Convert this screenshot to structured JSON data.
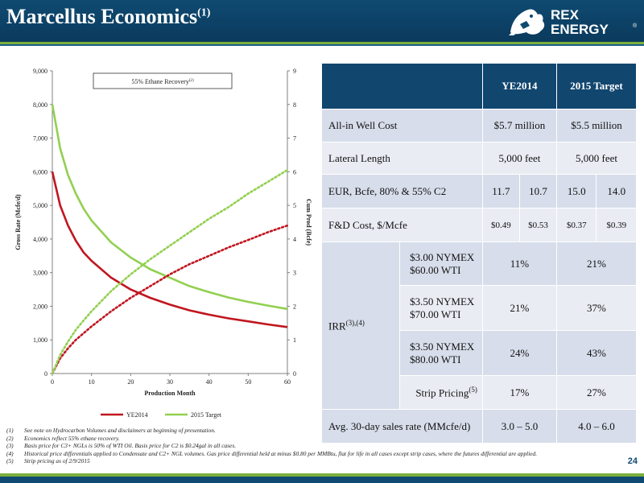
{
  "slide": {
    "title": "Marcellus Economics",
    "title_note": "(1)",
    "logo_text_1": "REX",
    "logo_text_2": "ENERGY",
    "logo_mark": "®",
    "page_number": "24"
  },
  "colors": {
    "header_blue": "#0f4a72",
    "accent_green": "#7bb03c",
    "ye2014_red": "#c0161f",
    "target_green": "#92d050"
  },
  "chart_data": {
    "type": "line",
    "annotation": "55% Ethane Recovery",
    "annotation_note": "(2)",
    "xlabel": "Production Month",
    "ylabel": "Gross Rate (Mcfe/d)",
    "y2label": "Cum Prod (Bcfe)",
    "xlim": [
      0,
      60
    ],
    "ylim": [
      0,
      9000
    ],
    "y2lim": [
      0,
      9
    ],
    "xticks": [
      0,
      10,
      20,
      30,
      40,
      50,
      60
    ],
    "yticks": [
      0,
      1000,
      2000,
      3000,
      4000,
      5000,
      6000,
      7000,
      8000,
      9000
    ],
    "ytick_labels": [
      "0",
      "1,000",
      "2,000",
      "3,000",
      "4,000",
      "5,000",
      "6,000",
      "7,000",
      "8,000",
      "9,000"
    ],
    "y2ticks": [
      0,
      1,
      2,
      3,
      4,
      5,
      6,
      7,
      8,
      9
    ],
    "x": [
      0,
      2,
      4,
      6,
      8,
      10,
      15,
      20,
      25,
      30,
      35,
      40,
      45,
      50,
      55,
      60
    ],
    "series": [
      {
        "name": "YE2014",
        "axis": "left",
        "style": "solid",
        "color": "#c0161f",
        "values": [
          6000,
          5000,
          4400,
          3950,
          3600,
          3350,
          2850,
          2500,
          2250,
          2050,
          1880,
          1750,
          1640,
          1550,
          1460,
          1380
        ]
      },
      {
        "name": "2015 Target",
        "axis": "left",
        "style": "solid",
        "color": "#92d050",
        "values": [
          8000,
          6700,
          5900,
          5350,
          4900,
          4550,
          3900,
          3450,
          3100,
          2850,
          2600,
          2420,
          2260,
          2130,
          2020,
          1920
        ]
      },
      {
        "name": "YE2014",
        "axis": "right",
        "style": "dotted",
        "color": "#c0161f",
        "values": [
          0,
          0.45,
          0.75,
          1.0,
          1.2,
          1.4,
          1.85,
          2.25,
          2.6,
          2.95,
          3.25,
          3.5,
          3.75,
          3.97,
          4.2,
          4.4
        ]
      },
      {
        "name": "2015 Target",
        "axis": "right",
        "style": "dotted",
        "color": "#92d050",
        "values": [
          0,
          0.55,
          0.95,
          1.3,
          1.58,
          1.85,
          2.45,
          2.95,
          3.4,
          3.8,
          4.2,
          4.6,
          4.95,
          5.35,
          5.7,
          6.05
        ]
      }
    ],
    "legend": [
      "YE2014",
      "2015 Target"
    ],
    "legend_position": "bottom",
    "grid": false
  },
  "table": {
    "headers": [
      "",
      "YE2014",
      "2015 Target"
    ],
    "well_cost": {
      "label": "All-in Well Cost",
      "ye2014": "$5.7 million",
      "target": "$5.5 million"
    },
    "lateral": {
      "label": "Lateral Length",
      "ye2014": "5,000 feet",
      "target": "5,000 feet"
    },
    "eur": {
      "label": "EUR, Bcfe, 80% & 55% C2",
      "v1": "11.7",
      "v2": "10.7",
      "v3": "15.0",
      "v4": "14.0"
    },
    "fd": {
      "label": "F&D Cost, $/Mcfe",
      "v1": "$0.49",
      "v2": "$0.53",
      "v3": "$0.37",
      "v4": "$0.39"
    },
    "irr_label": "IRR",
    "irr_note": "(3),(4)",
    "irr_rows": [
      {
        "line1": "$3.00 NYMEX",
        "line2": "$60.00 WTI",
        "ye2014": "11%",
        "target": "21%"
      },
      {
        "line1": "$3.50 NYMEX",
        "line2": "$70.00 WTI",
        "ye2014": "21%",
        "target": "37%"
      },
      {
        "line1": "$3.50 NYMEX",
        "line2": "$80.00 WTI",
        "ye2014": "24%",
        "target": "43%"
      }
    ],
    "strip": {
      "label": "Strip Pricing",
      "note": "(5)",
      "ye2014": "17%",
      "target": "27%"
    },
    "sales": {
      "label": "Avg. 30-day sales rate (MMcfe/d)",
      "ye2014": "3.0 – 5.0",
      "target": "4.0 – 6.0"
    }
  },
  "footnotes": [
    {
      "num": "(1)",
      "text": "See note on Hydrocarbon Volumes and disclaimers at beginning of presentation."
    },
    {
      "num": "(2)",
      "text": "Economics reflect 55% ethane recovery."
    },
    {
      "num": "(3)",
      "text": "Basis price for C3+ NGLs is 50% of WTI Oil. Basis price for C2 is $0.24gal in all cases."
    },
    {
      "num": "(4)",
      "text": "Historical price differentials applied to Condensate and C2+ NGL volumes. Gas price differential held at minus $0.80 per MMBtu, flat for life in all cases except strip cases, where the futures differential are applied."
    },
    {
      "num": "(5)",
      "text": "Strip pricing as of 2/9/2015"
    }
  ]
}
